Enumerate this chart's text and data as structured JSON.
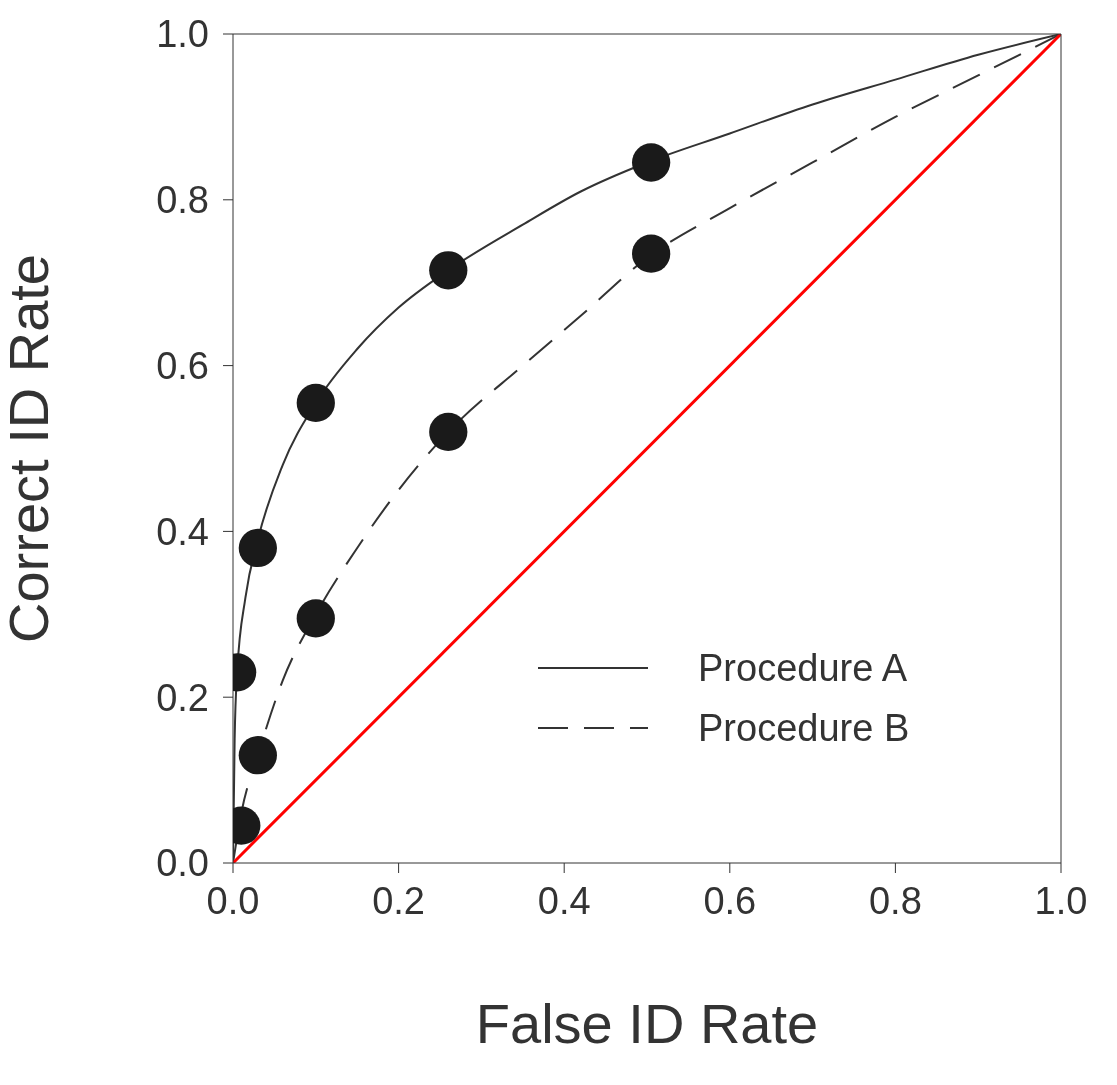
{
  "chart_data": {
    "type": "line",
    "xlabel": "False ID Rate",
    "ylabel": "Correct ID Rate",
    "xlim": [
      0,
      1
    ],
    "ylim": [
      0,
      1
    ],
    "xticks": [
      {
        "value": 0,
        "label": "0.0"
      },
      0.2,
      0.4,
      0.6,
      0.8,
      {
        "value": 1,
        "label": "1.0"
      }
    ],
    "yticks": [
      {
        "value": 0,
        "label": "0.0"
      },
      0.2,
      0.4,
      0.6,
      0.8,
      {
        "value": 1,
        "label": "1.0"
      }
    ],
    "grid": false,
    "legend": "bottom right",
    "series": [
      {
        "name": "Procedure A",
        "color": "#333333",
        "line_style": "solid",
        "x": [
          0,
          0.002,
          0.005,
          0.015,
          0.03,
          0.06,
          0.1,
          0.15,
          0.2,
          0.26,
          0.35,
          0.42,
          0.5,
          0.6,
          0.7,
          0.8,
          0.9,
          1
        ],
        "values": [
          0,
          0.15,
          0.23,
          0.32,
          0.39,
          0.48,
          0.555,
          0.62,
          0.67,
          0.715,
          0.77,
          0.81,
          0.845,
          0.88,
          0.915,
          0.945,
          0.975,
          1
        ]
      },
      {
        "name": "Procedure B",
        "color": "#333333",
        "line_style": "dashed",
        "x": [
          0,
          0.01,
          0.03,
          0.06,
          0.1,
          0.15,
          0.2,
          0.26,
          0.35,
          0.42,
          0.5,
          0.6,
          0.7,
          0.8,
          0.9,
          1
        ],
        "values": [
          0,
          0.06,
          0.13,
          0.22,
          0.3,
          0.38,
          0.45,
          0.52,
          0.6,
          0.66,
          0.73,
          0.79,
          0.845,
          0.9,
          0.95,
          1
        ]
      },
      {
        "color": "#ff0000",
        "line_style": "solid",
        "x": [
          0,
          1
        ],
        "values": [
          0,
          1
        ]
      },
      {
        "type": "scatter",
        "color": "#1a1a1a",
        "marker": "circle",
        "x": [
          0.005,
          0.03,
          0.1,
          0.26,
          0.505
        ],
        "values": [
          0.23,
          0.38,
          0.555,
          0.715,
          0.845
        ]
      },
      {
        "type": "scatter",
        "color": "#1a1a1a",
        "marker": "circle",
        "x": [
          0.01,
          0.03,
          0.1,
          0.26,
          0.505
        ],
        "values": [
          0.045,
          0.13,
          0.295,
          0.52,
          0.735
        ]
      }
    ]
  }
}
